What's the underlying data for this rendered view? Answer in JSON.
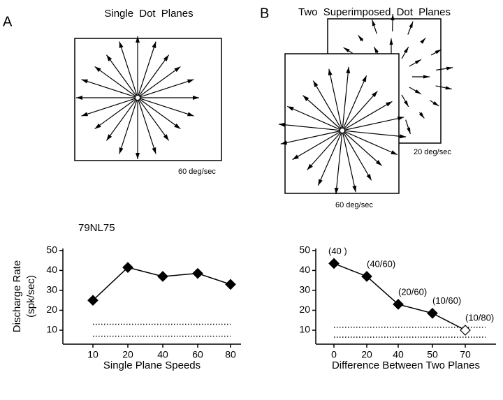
{
  "panels": {
    "label_a": "A",
    "label_b": "B",
    "title_a": "Single Dot Planes",
    "title_b": "Two Superimposed Dot Planes",
    "speed_a": "60 deg/sec",
    "speed_b_back": "20 deg/sec",
    "speed_b_front": "60 deg/sec",
    "cell_id": "79NL75"
  },
  "chart_data": [
    {
      "type": "line",
      "ylabel": [
        "Discharge Rate",
        "(spk/sec)"
      ],
      "xlabel": "Single Plane Speeds",
      "categories": [
        "10",
        "20",
        "40",
        "60",
        "80"
      ],
      "values": [
        25,
        41.5,
        37,
        38.5,
        33
      ],
      "filled": [
        true,
        true,
        true,
        true,
        true
      ],
      "color": "#000000",
      "reference_lines": [
        13,
        7
      ],
      "ylim": [
        3,
        51
      ],
      "yticks": [
        10,
        20,
        30,
        40,
        50
      ]
    },
    {
      "type": "line",
      "xlabel": "Difference Between Two Planes",
      "categories": [
        "0",
        "20",
        "40",
        "50",
        "70"
      ],
      "values": [
        43.5,
        37,
        23,
        18.5,
        10
      ],
      "value_labels": [
        "(40 )",
        "(40/60)",
        "(20/60)",
        "(10/60)",
        "(10/80)"
      ],
      "filled": [
        true,
        true,
        true,
        true,
        false
      ],
      "color": "#000000",
      "reference_lines": [
        11.5,
        6.5
      ],
      "ylim": [
        3,
        51
      ],
      "yticks": [
        10,
        20,
        30,
        40,
        50
      ]
    }
  ]
}
